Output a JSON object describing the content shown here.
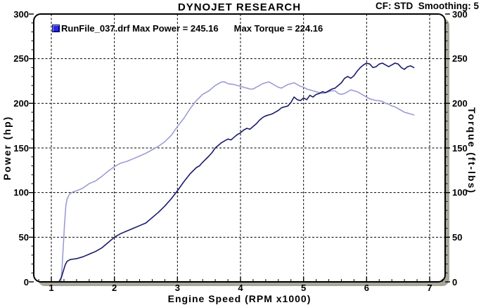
{
  "header": {
    "title": "DYNOJET RESEARCH",
    "settings_text": "CF: STD  Smoothing: 5"
  },
  "legend": {
    "swatch_color": "#2929e8",
    "run_label": "RunFile_037.drf Max Power = 245.16",
    "torque_label": "Max Torque = 224.16"
  },
  "colors": {
    "background": "#ffffff",
    "frame": "#000000",
    "shadow": "#a8a79a",
    "grid": "#000000",
    "power_curve": "#1a1a6b",
    "torque_curve": "#9c9cd4"
  },
  "chart_data": {
    "type": "line",
    "title": "DYNOJET RESEARCH",
    "xlabel": "Engine Speed (RPM x1000)",
    "ylabel_left": "Power (hp)",
    "ylabel_right": "Torque (ft-lbs)",
    "xlim": [
      0.72,
      7.25
    ],
    "ylim": [
      0,
      300
    ],
    "xticks": [
      1,
      2,
      3,
      4,
      5,
      6,
      7
    ],
    "yticks": [
      0,
      50,
      100,
      150,
      200,
      250,
      300
    ],
    "x_minor_step": 0.2,
    "y_minor_step": 10,
    "grid_style": "dashed",
    "legend_position": "top-left-inside",
    "max_power": 245.16,
    "max_torque": 224.16,
    "series": [
      {
        "name": "Power",
        "units": "hp",
        "axis": "left",
        "color": "#1a1a6b",
        "points": [
          [
            1.12,
            0
          ],
          [
            1.16,
            5
          ],
          [
            1.19,
            12
          ],
          [
            1.22,
            19
          ],
          [
            1.25,
            23
          ],
          [
            1.3,
            25
          ],
          [
            1.35,
            25.5
          ],
          [
            1.4,
            26
          ],
          [
            1.5,
            28
          ],
          [
            1.6,
            31
          ],
          [
            1.7,
            34
          ],
          [
            1.8,
            38
          ],
          [
            1.9,
            44
          ],
          [
            2.0,
            50
          ],
          [
            2.1,
            54
          ],
          [
            2.2,
            57
          ],
          [
            2.3,
            60
          ],
          [
            2.4,
            63
          ],
          [
            2.5,
            66
          ],
          [
            2.6,
            72
          ],
          [
            2.7,
            78
          ],
          [
            2.8,
            85
          ],
          [
            2.9,
            93
          ],
          [
            3.0,
            102
          ],
          [
            3.1,
            112
          ],
          [
            3.2,
            121
          ],
          [
            3.3,
            128
          ],
          [
            3.35,
            130
          ],
          [
            3.4,
            134
          ],
          [
            3.5,
            141
          ],
          [
            3.55,
            145
          ],
          [
            3.6,
            150
          ],
          [
            3.7,
            156
          ],
          [
            3.75,
            158
          ],
          [
            3.8,
            160
          ],
          [
            3.85,
            159
          ],
          [
            3.9,
            162
          ],
          [
            3.95,
            165
          ],
          [
            4.0,
            167
          ],
          [
            4.05,
            170
          ],
          [
            4.1,
            172
          ],
          [
            4.15,
            171
          ],
          [
            4.2,
            174
          ],
          [
            4.25,
            177
          ],
          [
            4.3,
            181
          ],
          [
            4.35,
            184
          ],
          [
            4.4,
            186
          ],
          [
            4.45,
            187
          ],
          [
            4.5,
            188
          ],
          [
            4.55,
            190
          ],
          [
            4.6,
            192
          ],
          [
            4.65,
            195
          ],
          [
            4.7,
            196
          ],
          [
            4.75,
            197
          ],
          [
            4.8,
            201
          ],
          [
            4.85,
            207
          ],
          [
            4.9,
            204
          ],
          [
            4.95,
            203
          ],
          [
            5.0,
            206
          ],
          [
            5.05,
            204
          ],
          [
            5.1,
            209
          ],
          [
            5.15,
            207
          ],
          [
            5.2,
            210
          ],
          [
            5.25,
            211
          ],
          [
            5.3,
            213
          ],
          [
            5.35,
            212
          ],
          [
            5.4,
            214
          ],
          [
            5.45,
            216
          ],
          [
            5.5,
            217
          ],
          [
            5.55,
            220
          ],
          [
            5.6,
            223
          ],
          [
            5.65,
            228
          ],
          [
            5.7,
            230
          ],
          [
            5.75,
            228
          ],
          [
            5.8,
            231
          ],
          [
            5.85,
            236
          ],
          [
            5.9,
            240
          ],
          [
            5.95,
            243
          ],
          [
            6.0,
            245
          ],
          [
            6.05,
            244
          ],
          [
            6.1,
            240
          ],
          [
            6.15,
            241
          ],
          [
            6.2,
            244
          ],
          [
            6.25,
            245
          ],
          [
            6.3,
            243
          ],
          [
            6.35,
            241
          ],
          [
            6.4,
            243
          ],
          [
            6.45,
            245
          ],
          [
            6.5,
            244
          ],
          [
            6.55,
            240
          ],
          [
            6.6,
            238
          ],
          [
            6.65,
            241
          ],
          [
            6.7,
            242
          ],
          [
            6.75,
            240
          ]
        ]
      },
      {
        "name": "Torque",
        "units": "ft-lbs",
        "axis": "right",
        "color": "#9c9cd4",
        "points": [
          [
            1.15,
            0
          ],
          [
            1.17,
            15
          ],
          [
            1.19,
            40
          ],
          [
            1.21,
            65
          ],
          [
            1.23,
            85
          ],
          [
            1.25,
            93
          ],
          [
            1.28,
            97
          ],
          [
            1.3,
            99
          ],
          [
            1.35,
            101
          ],
          [
            1.4,
            102
          ],
          [
            1.5,
            105
          ],
          [
            1.6,
            110
          ],
          [
            1.7,
            113
          ],
          [
            1.8,
            118
          ],
          [
            1.9,
            124
          ],
          [
            2.0,
            129
          ],
          [
            2.1,
            133
          ],
          [
            2.2,
            135
          ],
          [
            2.3,
            138
          ],
          [
            2.4,
            141
          ],
          [
            2.5,
            144
          ],
          [
            2.6,
            148
          ],
          [
            2.7,
            152
          ],
          [
            2.8,
            157
          ],
          [
            2.9,
            164
          ],
          [
            3.0,
            174
          ],
          [
            3.1,
            183
          ],
          [
            3.2,
            194
          ],
          [
            3.3,
            203
          ],
          [
            3.4,
            210
          ],
          [
            3.5,
            214
          ],
          [
            3.6,
            220
          ],
          [
            3.65,
            222
          ],
          [
            3.7,
            224
          ],
          [
            3.75,
            224
          ],
          [
            3.8,
            222
          ],
          [
            3.9,
            221
          ],
          [
            4.0,
            219
          ],
          [
            4.1,
            217
          ],
          [
            4.15,
            216
          ],
          [
            4.2,
            216
          ],
          [
            4.25,
            218
          ],
          [
            4.3,
            220
          ],
          [
            4.35,
            222
          ],
          [
            4.4,
            223
          ],
          [
            4.45,
            224
          ],
          [
            4.5,
            222
          ],
          [
            4.55,
            220
          ],
          [
            4.6,
            218
          ],
          [
            4.65,
            217
          ],
          [
            4.7,
            219
          ],
          [
            4.75,
            221
          ],
          [
            4.8,
            222
          ],
          [
            4.85,
            223
          ],
          [
            4.9,
            221
          ],
          [
            4.95,
            219
          ],
          [
            5.0,
            218
          ],
          [
            5.05,
            216
          ],
          [
            5.1,
            215
          ],
          [
            5.15,
            214
          ],
          [
            5.2,
            213
          ],
          [
            5.25,
            212
          ],
          [
            5.3,
            211
          ],
          [
            5.35,
            212
          ],
          [
            5.4,
            213
          ],
          [
            5.45,
            214
          ],
          [
            5.5,
            214
          ],
          [
            5.55,
            211
          ],
          [
            5.6,
            210
          ],
          [
            5.65,
            211
          ],
          [
            5.7,
            213
          ],
          [
            5.75,
            215
          ],
          [
            5.8,
            214
          ],
          [
            5.85,
            213
          ],
          [
            5.9,
            211
          ],
          [
            5.95,
            209
          ],
          [
            6.0,
            207
          ],
          [
            6.05,
            205
          ],
          [
            6.1,
            204
          ],
          [
            6.15,
            203
          ],
          [
            6.2,
            203
          ],
          [
            6.25,
            202
          ],
          [
            6.3,
            200
          ],
          [
            6.35,
            199
          ],
          [
            6.4,
            197
          ],
          [
            6.45,
            196
          ],
          [
            6.5,
            194
          ],
          [
            6.55,
            192
          ],
          [
            6.6,
            190
          ],
          [
            6.65,
            189
          ],
          [
            6.7,
            188
          ],
          [
            6.75,
            187
          ]
        ]
      }
    ]
  }
}
